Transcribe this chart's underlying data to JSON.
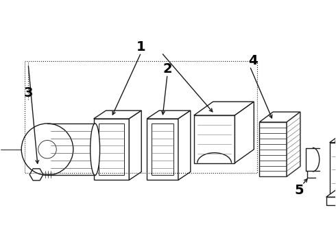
{
  "bg_color": "#ffffff",
  "line_color": "#1a1a1a",
  "label_color": "#000000",
  "fig_width": 4.9,
  "fig_height": 3.6,
  "dpi": 100,
  "label_fontsize": 12
}
